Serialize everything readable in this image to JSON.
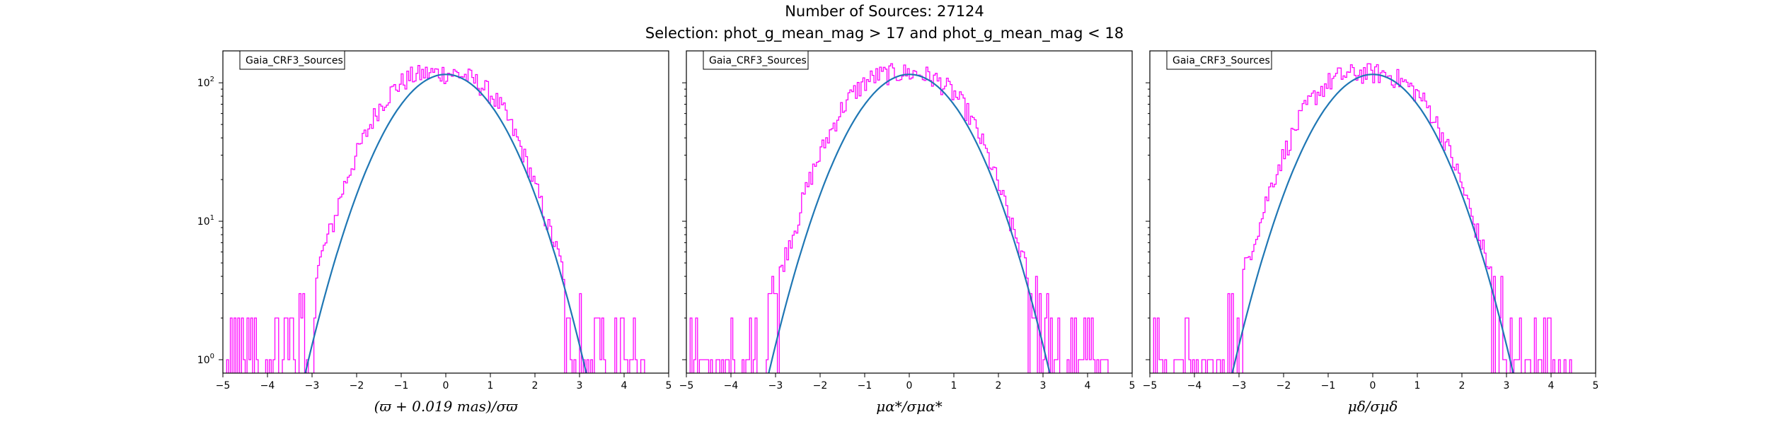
{
  "figure": {
    "title_line1": "Number of Sources: 27124",
    "title_line2": "Selection: phot_g_mean_mag > 17 and phot_g_mean_mag < 18"
  },
  "colors": {
    "histogram": "#ff00ff",
    "fit": "#1f77b4"
  },
  "chart_data": [
    {
      "type": "line",
      "title": "",
      "xlabel": "(ϖ + 0.019 mas)/σϖ",
      "ylabel": "",
      "xlim": [
        -5,
        5
      ],
      "ylim": [
        0.8,
        170
      ],
      "yscale": "log",
      "x_ticks": [
        "−5",
        "−4",
        "−3",
        "−2",
        "−1",
        "0",
        "1",
        "2",
        "3",
        "4",
        "5"
      ],
      "y_ticks": [
        {
          "value": 1,
          "base": "10",
          "exp": "0"
        },
        {
          "value": 10,
          "base": "10",
          "exp": "1"
        },
        {
          "value": 100,
          "base": "10",
          "exp": "2"
        }
      ],
      "legend": "Gaia_CRF3_Sources",
      "legend_position": "top-left",
      "series": [
        {
          "name": "Gaia_CRF3_Sources",
          "style": "histogram",
          "x": [
            -4.9,
            -4.5,
            -4.0,
            -3.5,
            -3.25,
            -3.0,
            -2.75,
            -2.5,
            -2.25,
            -2.0,
            -1.75,
            -1.5,
            -1.25,
            -1.0,
            -0.75,
            -0.5,
            -0.25,
            0.0,
            0.25,
            0.5,
            0.75,
            1.0,
            1.25,
            1.5,
            1.75,
            2.0,
            2.25,
            2.5,
            2.75,
            3.0,
            3.25,
            3.5,
            3.75,
            4.0,
            4.5
          ],
          "y": [
            1,
            1,
            1,
            1,
            2,
            3,
            6,
            10,
            19,
            30,
            45,
            66,
            84,
            100,
            112,
            116,
            118,
            118,
            116,
            110,
            98,
            84,
            66,
            46,
            30,
            18,
            10,
            6,
            3,
            2,
            1,
            1,
            1,
            1,
            1
          ]
        },
        {
          "style": "fit",
          "x": [
            -3.5,
            -3.0,
            -2.5,
            -2.0,
            -1.5,
            -1.0,
            -0.5,
            0.0,
            0.5,
            1.0,
            1.5,
            2.0,
            2.5,
            3.0,
            3.5
          ],
          "y": [
            0.5,
            2.1,
            8.6,
            25.5,
            56.5,
            91.3,
            111.9,
            115.0,
            111.9,
            91.3,
            56.5,
            25.5,
            8.6,
            2.1,
            0.5
          ]
        }
      ]
    },
    {
      "type": "line",
      "title": "",
      "xlabel": "μα*/σμα*",
      "ylabel": "",
      "xlim": [
        -5,
        5
      ],
      "ylim": [
        0.8,
        170
      ],
      "yscale": "log",
      "x_ticks": [
        "−5",
        "−4",
        "−3",
        "−2",
        "−1",
        "0",
        "1",
        "2",
        "3",
        "4",
        "5"
      ],
      "legend": "Gaia_CRF3_Sources",
      "legend_position": "top-left",
      "series": [
        {
          "name": "Gaia_CRF3_Sources",
          "style": "histogram",
          "x": [
            -4.9,
            -4.5,
            -4.0,
            -3.5,
            -3.25,
            -3.0,
            -2.75,
            -2.5,
            -2.25,
            -2.0,
            -1.75,
            -1.5,
            -1.25,
            -1.0,
            -0.75,
            -0.5,
            -0.25,
            0.0,
            0.25,
            0.5,
            0.75,
            1.0,
            1.25,
            1.5,
            1.75,
            2.0,
            2.25,
            2.5,
            2.75,
            3.0,
            3.25,
            3.5,
            3.75,
            4.0,
            4.5
          ],
          "y": [
            1,
            1,
            1,
            1,
            2,
            3,
            6,
            10,
            19,
            30,
            45,
            66,
            84,
            100,
            112,
            116,
            118,
            118,
            116,
            110,
            98,
            84,
            66,
            46,
            30,
            18,
            10,
            6,
            3,
            2,
            1,
            1,
            1,
            1,
            1
          ]
        },
        {
          "style": "fit",
          "x": [
            -3.5,
            -3.0,
            -2.5,
            -2.0,
            -1.5,
            -1.0,
            -0.5,
            0.0,
            0.5,
            1.0,
            1.5,
            2.0,
            2.5,
            3.0,
            3.5
          ],
          "y": [
            0.5,
            2.1,
            8.6,
            25.5,
            56.5,
            91.3,
            111.9,
            115.0,
            111.9,
            91.3,
            56.5,
            25.5,
            8.6,
            2.1,
            0.5
          ]
        }
      ]
    },
    {
      "type": "line",
      "title": "",
      "xlabel": "μδ/σμδ",
      "ylabel": "",
      "xlim": [
        -5,
        5
      ],
      "ylim": [
        0.8,
        170
      ],
      "yscale": "log",
      "x_ticks": [
        "−5",
        "−4",
        "−3",
        "−2",
        "−1",
        "0",
        "1",
        "2",
        "3",
        "4",
        "5"
      ],
      "legend": "Gaia_CRF3_Sources",
      "legend_position": "top-left",
      "series": [
        {
          "name": "Gaia_CRF3_Sources",
          "style": "histogram",
          "x": [
            -4.9,
            -4.5,
            -4.0,
            -3.5,
            -3.25,
            -3.0,
            -2.75,
            -2.5,
            -2.25,
            -2.0,
            -1.75,
            -1.5,
            -1.25,
            -1.0,
            -0.75,
            -0.5,
            -0.25,
            0.0,
            0.25,
            0.5,
            0.75,
            1.0,
            1.25,
            1.5,
            1.75,
            2.0,
            2.25,
            2.5,
            2.75,
            3.0,
            3.25,
            3.5,
            3.75,
            4.0,
            4.5
          ],
          "y": [
            1,
            1,
            1,
            1,
            2,
            3,
            6,
            10,
            19,
            30,
            45,
            66,
            84,
            100,
            112,
            116,
            118,
            118,
            116,
            110,
            98,
            84,
            66,
            46,
            30,
            18,
            10,
            6,
            3,
            2,
            1,
            1,
            1,
            1,
            1
          ]
        },
        {
          "style": "fit",
          "x": [
            -3.5,
            -3.0,
            -2.5,
            -2.0,
            -1.5,
            -1.0,
            -0.5,
            0.0,
            0.5,
            1.0,
            1.5,
            2.0,
            2.5,
            3.0,
            3.5
          ],
          "y": [
            0.5,
            2.1,
            8.6,
            25.5,
            56.5,
            91.3,
            111.9,
            115.0,
            111.9,
            91.3,
            56.5,
            25.5,
            8.6,
            2.1,
            0.5
          ]
        }
      ]
    }
  ]
}
